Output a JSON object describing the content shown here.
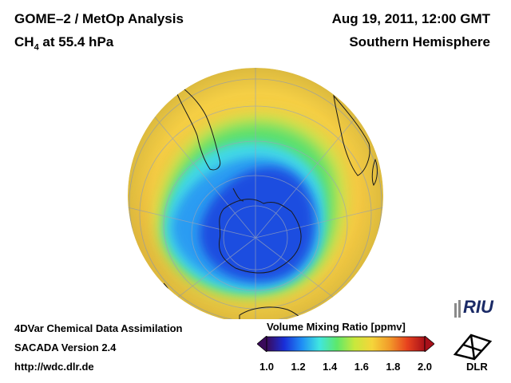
{
  "header": {
    "title_line1": "GOME–2 / MetOp Analysis",
    "title_line2_prefix": "CH",
    "title_line2_sub": "4",
    "title_line2_suffix": " at 55.4 hPa",
    "date": "Aug 19, 2011, 12:00 GMT",
    "region": "Southern Hemisphere"
  },
  "credits": {
    "line1": "4DVar Chemical Data Assimilation",
    "line2": "SACADA Version 2.4",
    "line3": "http://wdc.dlr.de"
  },
  "colorbar": {
    "title": "Volume Mixing Ratio [ppmv]",
    "ticks": [
      "1.0",
      "1.2",
      "1.4",
      "1.6",
      "1.8",
      "2.0"
    ],
    "min": 1.0,
    "max": 2.0,
    "colors": [
      "#3a0a5a",
      "#1a2fd8",
      "#1f8ef5",
      "#40e6e0",
      "#5ee86a",
      "#c8e83c",
      "#f5d53a",
      "#f29a2a",
      "#e8421e",
      "#a8101a"
    ]
  },
  "map": {
    "projection": "orthographic, south pole view",
    "background_level": 1.65,
    "vortex_core_level": 1.2
  },
  "logos": {
    "riu": "RIU",
    "dlr": "DLR"
  }
}
